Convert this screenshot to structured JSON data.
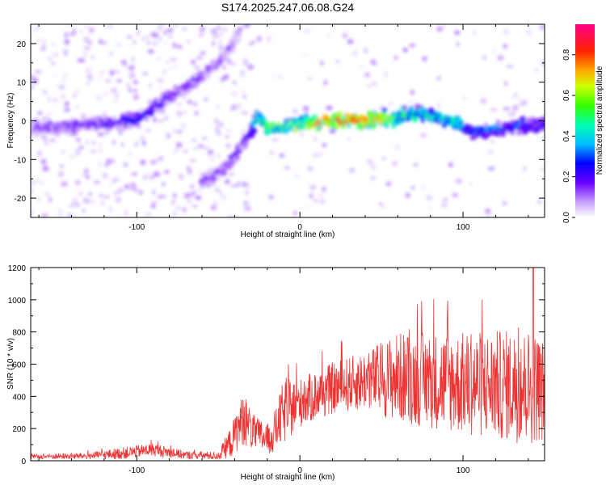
{
  "title": "S174.2025.247.06.08.G24",
  "chart_data": [
    {
      "type": "heatmap",
      "name": "spectrogram",
      "xlabel": "Height of straight line (km)",
      "ylabel": "Frequency (Hz)",
      "xlim": [
        -165,
        150
      ],
      "ylim": [
        -25,
        25
      ],
      "xticks": [
        -100,
        0,
        100
      ],
      "xtick_labels": [
        "-100",
        "0",
        "100"
      ],
      "yticks": [
        -20,
        -10,
        0,
        10,
        20
      ],
      "ytick_labels": [
        "-20",
        "-10",
        "0",
        "10",
        "20"
      ],
      "colorbar": {
        "label": "Normalized spectral amplitude",
        "range": [
          0,
          0.95
        ],
        "ticks": [
          0.0,
          0.2,
          0.4,
          0.6,
          0.8
        ],
        "tick_labels": [
          "0.0",
          "0.2",
          "0.4",
          "0.6",
          "0.8"
        ]
      },
      "ridge": [
        {
          "x": -165,
          "f": -2,
          "amp": 0.2
        },
        {
          "x": -130,
          "f": -1,
          "amp": 0.2
        },
        {
          "x": -100,
          "f": 0,
          "amp": 0.3
        },
        {
          "x": -85,
          "f": 5,
          "amp": 0.25
        },
        {
          "x": -65,
          "f": 10,
          "amp": 0.2
        },
        {
          "x": -50,
          "f": 15,
          "amp": 0.15
        },
        {
          "x": -40,
          "f": 20,
          "amp": 0.15
        },
        {
          "x": -36,
          "f": 25,
          "amp": 0.15
        },
        {
          "x": -60,
          "f": -16,
          "amp": 0.18
        },
        {
          "x": -45,
          "f": -12,
          "amp": 0.2
        },
        {
          "x": -30,
          "f": -3,
          "amp": 0.3
        },
        {
          "x": -26,
          "f": 1,
          "amp": 0.5
        },
        {
          "x": -20,
          "f": -2,
          "amp": 0.6
        },
        {
          "x": 0,
          "f": -1,
          "amp": 0.7
        },
        {
          "x": 20,
          "f": 0,
          "amp": 0.9
        },
        {
          "x": 40,
          "f": 0,
          "amp": 0.85
        },
        {
          "x": 60,
          "f": 1,
          "amp": 0.6
        },
        {
          "x": 75,
          "f": 2,
          "amp": 0.5
        },
        {
          "x": 95,
          "f": 0,
          "amp": 0.5
        },
        {
          "x": 105,
          "f": -3,
          "amp": 0.4
        },
        {
          "x": 125,
          "f": -2,
          "amp": 0.35
        },
        {
          "x": 150,
          "f": -1,
          "amp": 0.3
        }
      ]
    },
    {
      "type": "line",
      "name": "snr",
      "xlabel": "Height of straight line (km)",
      "ylabel": "SNR (10 * v/v)",
      "xlim": [
        -165,
        150
      ],
      "ylim": [
        0,
        1200
      ],
      "xticks": [
        -100,
        0,
        100
      ],
      "xtick_labels": [
        "-100",
        "0",
        "100"
      ],
      "yticks": [
        0,
        200,
        400,
        600,
        800,
        1000,
        1200
      ],
      "ytick_labels": [
        "0",
        "200",
        "400",
        "600",
        "800",
        "1000",
        "1200"
      ],
      "color": "#ee3333",
      "envelope": [
        {
          "x": -165,
          "mean": 25,
          "spread": 15
        },
        {
          "x": -130,
          "mean": 30,
          "spread": 20
        },
        {
          "x": -110,
          "mean": 45,
          "spread": 35
        },
        {
          "x": -90,
          "mean": 70,
          "spread": 40
        },
        {
          "x": -70,
          "mean": 35,
          "spread": 25
        },
        {
          "x": -50,
          "mean": 30,
          "spread": 25
        },
        {
          "x": -42,
          "mean": 120,
          "spread": 100
        },
        {
          "x": -35,
          "mean": 260,
          "spread": 160
        },
        {
          "x": -28,
          "mean": 170,
          "spread": 110
        },
        {
          "x": -18,
          "mean": 130,
          "spread": 90
        },
        {
          "x": -10,
          "mean": 300,
          "spread": 200
        },
        {
          "x": 0,
          "mean": 360,
          "spread": 150
        },
        {
          "x": 20,
          "mean": 450,
          "spread": 160
        },
        {
          "x": 40,
          "mean": 500,
          "spread": 180
        },
        {
          "x": 60,
          "mean": 520,
          "spread": 280
        },
        {
          "x": 80,
          "mean": 500,
          "spread": 300
        },
        {
          "x": 100,
          "mean": 480,
          "spread": 320
        },
        {
          "x": 120,
          "mean": 470,
          "spread": 340
        },
        {
          "x": 140,
          "mean": 460,
          "spread": 360
        },
        {
          "x": 150,
          "mean": 440,
          "spread": 320
        }
      ],
      "peak": {
        "x": 143,
        "y": 1200
      }
    }
  ]
}
